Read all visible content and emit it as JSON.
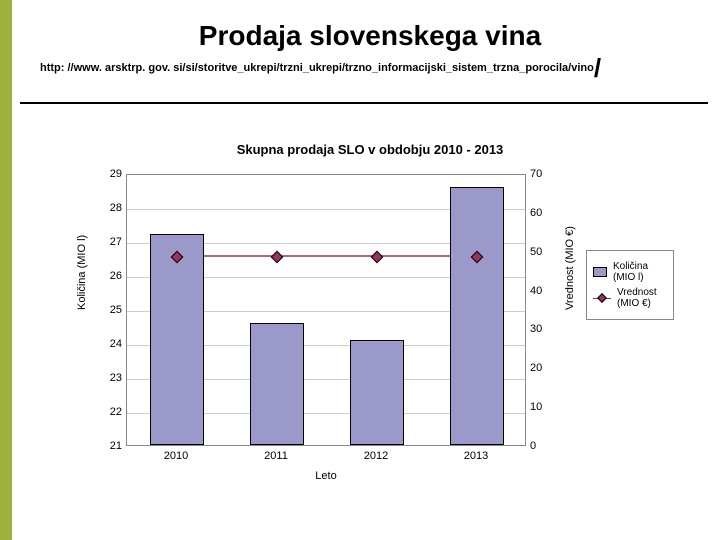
{
  "accent_color": "#9cb23c",
  "title": "Prodaja slovenskega vina",
  "source": "http: //www. arsktrp. gov. si/si/storitve_ukrepi/trzni_ukrepi/trzno_informacijski_sistem_trzna_porocila/vino",
  "chart": {
    "type": "bar+line-dual-axis",
    "title": "Skupna prodaja SLO v obdobju 2010 - 2013",
    "background_color": "#ffffff",
    "grid_color": "#cccccc",
    "plot_border": "#888888",
    "categories": [
      "2010",
      "2011",
      "2012",
      "2013"
    ],
    "xaxis_label": "Leto",
    "left_axis": {
      "label": "Količina (MIO l)",
      "min": 21,
      "max": 29,
      "step": 1,
      "ticks": [
        21,
        22,
        23,
        24,
        25,
        26,
        27,
        28,
        29
      ]
    },
    "right_axis": {
      "label": "Vrednost (MIO €)",
      "min": 0,
      "max": 70,
      "step": 10,
      "ticks": [
        0,
        10,
        20,
        30,
        40,
        50,
        60,
        70
      ]
    },
    "bar_series": {
      "name": "Količina (MIO l)",
      "color": "#9a99ca",
      "values": [
        27.2,
        24.6,
        24.1,
        28.6
      ],
      "rel_width": 0.54
    },
    "line_series": {
      "name": "Vrednost (MIO €)",
      "color": "#97335f",
      "marker": "diamond",
      "values": [
        49,
        49,
        49,
        49
      ]
    },
    "font": {
      "title_size": 13,
      "tick_size": 11,
      "label_size": 11,
      "legend_size": 10
    }
  }
}
